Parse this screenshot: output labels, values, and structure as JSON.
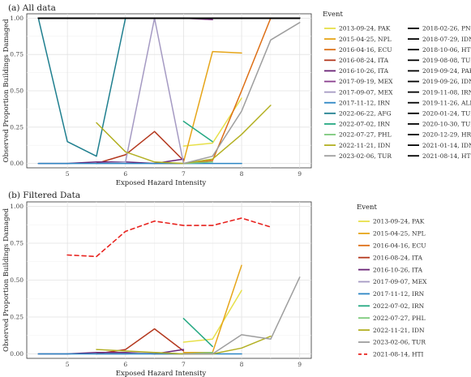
{
  "chart_data": [
    {
      "type": "line",
      "title": "(a) All data",
      "xlabel": "Exposed Hazard Intensity",
      "ylabel": "Observed Proportion Buildings Damaged",
      "xlim": [
        4.3,
        9.2
      ],
      "ylim": [
        -0.03,
        1.03
      ],
      "xticks": [
        "5",
        "6",
        "7",
        "8",
        "9"
      ],
      "yticks": [
        "0.00",
        "0.25",
        "0.50",
        "0.75",
        "1.00"
      ],
      "grid": true,
      "legend_title": "Event",
      "legend_position": "right",
      "series": [
        {
          "name": "2013-09-24, PAK",
          "color": "#e7e049",
          "dash": false,
          "x": [
            7.0,
            7.5,
            8.0
          ],
          "y": [
            0.12,
            0.14,
            0.45
          ]
        },
        {
          "name": "2015-04-25, NPL",
          "color": "#e6a519",
          "dash": false,
          "x": [
            7.0,
            7.5,
            8.0
          ],
          "y": [
            0.01,
            0.77,
            0.76
          ]
        },
        {
          "name": "2016-04-16, ECU",
          "color": "#dd6e14",
          "dash": false,
          "x": [
            6.5,
            7.0,
            7.5,
            8.0,
            8.5
          ],
          "y": [
            0.0,
            0.0,
            0.02,
            0.5,
            1.0
          ]
        },
        {
          "name": "2016-08-24, ITA",
          "color": "#b4391f",
          "dash": false,
          "x": [
            5.5,
            6.0,
            6.5,
            7.0
          ],
          "y": [
            0.0,
            0.06,
            0.22,
            0.02
          ]
        },
        {
          "name": "2016-10-26, ITA",
          "color": "#6a2376",
          "dash": false,
          "x": [
            4.5,
            5.0,
            5.5,
            6.0,
            6.5,
            7.0
          ],
          "y": [
            0.0,
            0.0,
            0.01,
            0.01,
            0.0,
            0.03
          ]
        },
        {
          "name": "2017-09-19, MEX",
          "color": "#8a3f8e",
          "dash": false,
          "x": [
            7.0,
            7.5
          ],
          "y": [
            1.0,
            0.99
          ]
        },
        {
          "name": "2017-09-07, MEX",
          "color": "#a59ac3",
          "dash": false,
          "x": [
            5.5,
            6.0,
            6.5,
            7.0
          ],
          "y": [
            0.0,
            0.01,
            1.0,
            0.0
          ]
        },
        {
          "name": "2017-11-12, IRN",
          "color": "#2c86c4",
          "dash": false,
          "x": [
            4.5,
            5.5,
            6.5,
            7.5,
            8.0
          ],
          "y": [
            0.0,
            0.0,
            0.0,
            0.0,
            0.0
          ]
        },
        {
          "name": "2022-06-22, AFG",
          "color": "#1f7f8f",
          "dash": false,
          "x": [
            4.5,
            5.0,
            5.5,
            6.0
          ],
          "y": [
            1.0,
            0.15,
            0.05,
            1.0
          ]
        },
        {
          "name": "2022-07-02, IRN",
          "color": "#26a983",
          "dash": false,
          "x": [
            7.0,
            7.5
          ],
          "y": [
            0.29,
            0.15
          ]
        },
        {
          "name": "2022-07-27, PHL",
          "color": "#7bc97a",
          "dash": false,
          "x": [
            7.0,
            7.5
          ],
          "y": [
            0.0,
            0.01
          ]
        },
        {
          "name": "2022-11-21, IDN",
          "color": "#b3b023",
          "dash": false,
          "x": [
            5.5,
            6.0,
            6.5,
            7.0,
            7.5,
            8.0,
            8.5
          ],
          "y": [
            0.28,
            0.08,
            0.01,
            0.0,
            0.03,
            0.2,
            0.4
          ]
        },
        {
          "name": "2023-02-06, TUR",
          "color": "#9e9e9e",
          "dash": false,
          "x": [
            7.0,
            7.5,
            8.0,
            8.5,
            9.0
          ],
          "y": [
            0.0,
            0.05,
            0.36,
            0.85,
            0.97
          ]
        },
        {
          "name": "2018-02-26, PNG",
          "color": "#000000",
          "dash": false,
          "x": [
            4.5,
            9.0
          ],
          "y": [
            1.0,
            1.0
          ]
        },
        {
          "name": "2018-07-29, IDN",
          "color": "#000000",
          "dash": false,
          "x": [
            4.5,
            9.0
          ],
          "y": [
            1.0,
            1.0
          ]
        },
        {
          "name": "2018-10-06, HTI",
          "color": "#000000",
          "dash": false,
          "x": [
            4.5,
            9.0
          ],
          "y": [
            1.0,
            1.0
          ]
        },
        {
          "name": "2019-08-08, TUR",
          "color": "#000000",
          "dash": false,
          "x": [
            4.5,
            9.0
          ],
          "y": [
            1.0,
            1.0
          ]
        },
        {
          "name": "2019-09-24, PAK",
          "color": "#000000",
          "dash": false,
          "x": [
            4.5,
            9.0
          ],
          "y": [
            1.0,
            1.0
          ]
        },
        {
          "name": "2019-09-26, IDN",
          "color": "#000000",
          "dash": false,
          "x": [
            4.5,
            9.0
          ],
          "y": [
            1.0,
            1.0
          ]
        },
        {
          "name": "2019-11-08, IRN",
          "color": "#000000",
          "dash": false,
          "x": [
            4.5,
            9.0
          ],
          "y": [
            1.0,
            1.0
          ]
        },
        {
          "name": "2019-11-26, ALB",
          "color": "#000000",
          "dash": false,
          "x": [
            4.5,
            9.0
          ],
          "y": [
            1.0,
            1.0
          ]
        },
        {
          "name": "2020-01-24, TUR",
          "color": "#000000",
          "dash": false,
          "x": [
            4.5,
            9.0
          ],
          "y": [
            1.0,
            1.0
          ]
        },
        {
          "name": "2020-10-30, TUR",
          "color": "#000000",
          "dash": false,
          "x": [
            4.5,
            9.0
          ],
          "y": [
            1.0,
            1.0
          ]
        },
        {
          "name": "2020-12-29, HRV",
          "color": "#000000",
          "dash": false,
          "x": [
            4.5,
            9.0
          ],
          "y": [
            1.0,
            1.0
          ]
        },
        {
          "name": "2021-01-14, IDN",
          "color": "#000000",
          "dash": false,
          "x": [
            4.5,
            9.0
          ],
          "y": [
            1.0,
            1.0
          ]
        },
        {
          "name": "2021-08-14, HTI",
          "color": "#000000",
          "dash": false,
          "x": [
            4.5,
            9.0
          ],
          "y": [
            1.0,
            1.0
          ]
        }
      ]
    },
    {
      "type": "line",
      "title": "(b) Filtered Data",
      "xlabel": "Exposed Hazard Intensity",
      "ylabel": "Observed Proportion Buildings Damaged",
      "xlim": [
        4.3,
        9.2
      ],
      "ylim": [
        -0.03,
        1.03
      ],
      "xticks": [
        "5",
        "6",
        "7",
        "8",
        "9"
      ],
      "yticks": [
        "0.00",
        "0.25",
        "0.50",
        "0.75",
        "1.00"
      ],
      "grid": true,
      "legend_title": "Event",
      "legend_position": "right",
      "series": [
        {
          "name": "2013-09-24, PAK",
          "color": "#e7e049",
          "dash": false,
          "x": [
            7.0,
            7.5,
            8.0
          ],
          "y": [
            0.08,
            0.1,
            0.43
          ]
        },
        {
          "name": "2015-04-25, NPL",
          "color": "#e6a519",
          "dash": false,
          "x": [
            7.0,
            7.5,
            8.0
          ],
          "y": [
            0.01,
            0.01,
            0.6
          ]
        },
        {
          "name": "2016-04-16, ECU",
          "color": "#dd6e14",
          "dash": false,
          "x": [
            6.5,
            7.0,
            7.5
          ],
          "y": [
            0.0,
            0.0,
            0.0
          ]
        },
        {
          "name": "2016-08-24, ITA",
          "color": "#b4391f",
          "dash": false,
          "x": [
            5.5,
            6.0,
            6.5,
            7.0
          ],
          "y": [
            0.0,
            0.03,
            0.17,
            0.02
          ]
        },
        {
          "name": "2016-10-26, ITA",
          "color": "#6a2376",
          "dash": false,
          "x": [
            4.5,
            5.0,
            5.5,
            6.0,
            6.5,
            7.0
          ],
          "y": [
            0.0,
            0.0,
            0.01,
            0.01,
            0.0,
            0.03
          ]
        },
        {
          "name": "2017-09-07, MEX",
          "color": "#a59ac3",
          "dash": false,
          "x": [
            5.5,
            6.0,
            6.5,
            7.0
          ],
          "y": [
            0.0,
            0.0,
            0.01,
            0.0
          ]
        },
        {
          "name": "2017-11-12, IRN",
          "color": "#2c86c4",
          "dash": false,
          "x": [
            4.5,
            5.5,
            6.5,
            7.5,
            8.0
          ],
          "y": [
            0.0,
            0.0,
            0.0,
            0.0,
            0.0
          ]
        },
        {
          "name": "2022-07-02, IRN",
          "color": "#26a983",
          "dash": false,
          "x": [
            7.0,
            7.5
          ],
          "y": [
            0.24,
            0.05
          ]
        },
        {
          "name": "2022-07-27, PHL",
          "color": "#7bc97a",
          "dash": false,
          "x": [
            7.0,
            7.5
          ],
          "y": [
            0.0,
            0.01
          ]
        },
        {
          "name": "2022-11-21, IDN",
          "color": "#b3b023",
          "dash": false,
          "x": [
            5.5,
            6.0,
            6.5,
            7.0,
            7.5,
            8.0,
            8.5
          ],
          "y": [
            0.03,
            0.02,
            0.01,
            0.0,
            0.0,
            0.04,
            0.12
          ]
        },
        {
          "name": "2023-02-06, TUR",
          "color": "#9e9e9e",
          "dash": false,
          "x": [
            7.0,
            7.5,
            8.0,
            8.5,
            9.0
          ],
          "y": [
            0.0,
            0.0,
            0.13,
            0.1,
            0.52
          ]
        },
        {
          "name": "2021-08-14, HTI",
          "color": "#e8231f",
          "dash": true,
          "x": [
            5.0,
            5.5,
            6.0,
            6.5,
            7.0,
            7.5,
            8.0,
            8.5
          ],
          "y": [
            0.67,
            0.66,
            0.83,
            0.9,
            0.87,
            0.87,
            0.92,
            0.86
          ]
        }
      ]
    }
  ]
}
